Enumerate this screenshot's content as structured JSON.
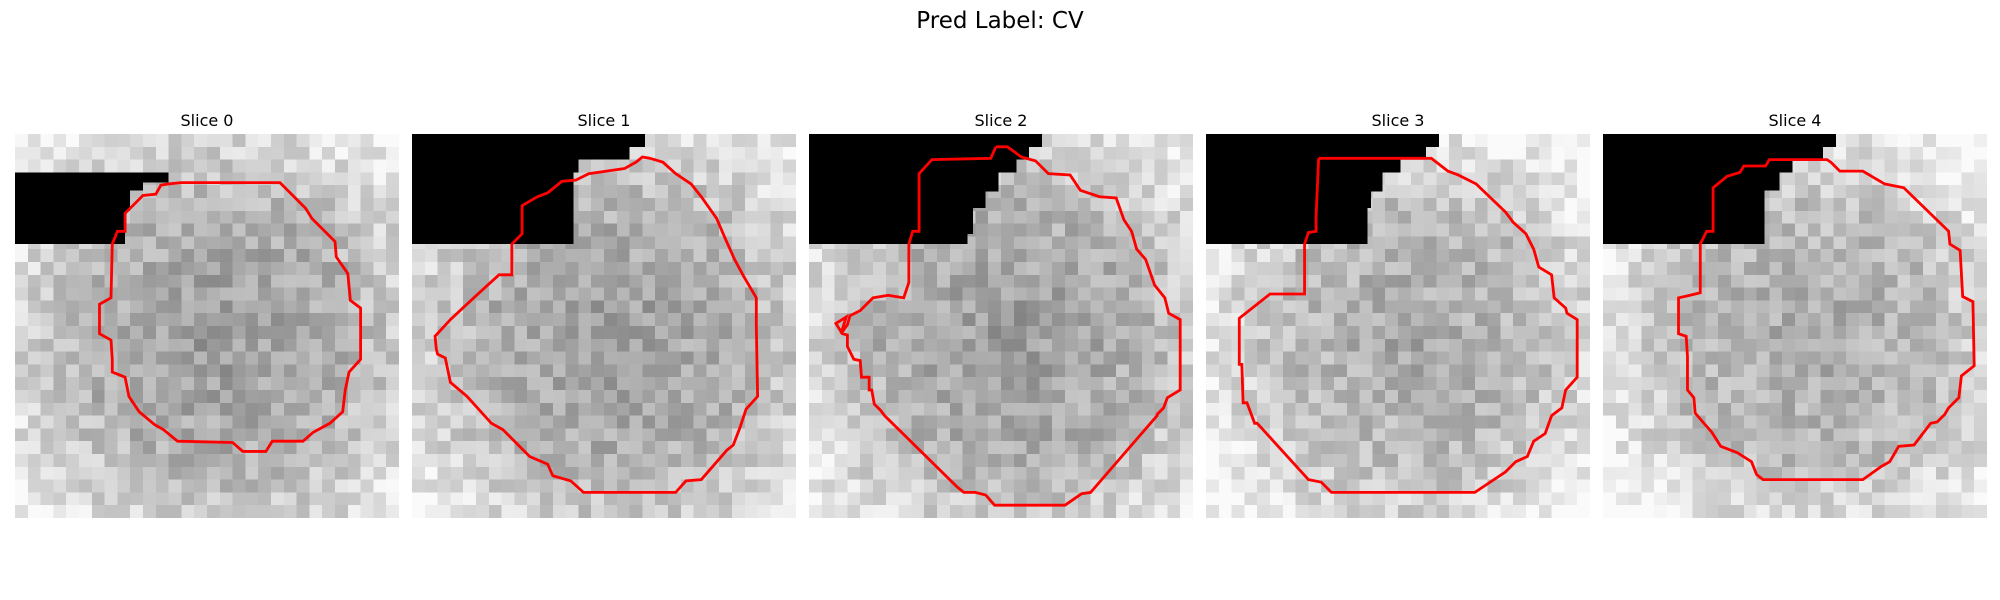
{
  "figure": {
    "title": "Pred Label: CV"
  },
  "colors": {
    "contour": "#ff0000",
    "mask": "#000000"
  },
  "panels": [
    {
      "title": "Slice 0"
    },
    {
      "title": "Slice 1"
    },
    {
      "title": "Slice 2"
    },
    {
      "title": "Slice 3"
    },
    {
      "title": "Slice 4"
    }
  ]
}
